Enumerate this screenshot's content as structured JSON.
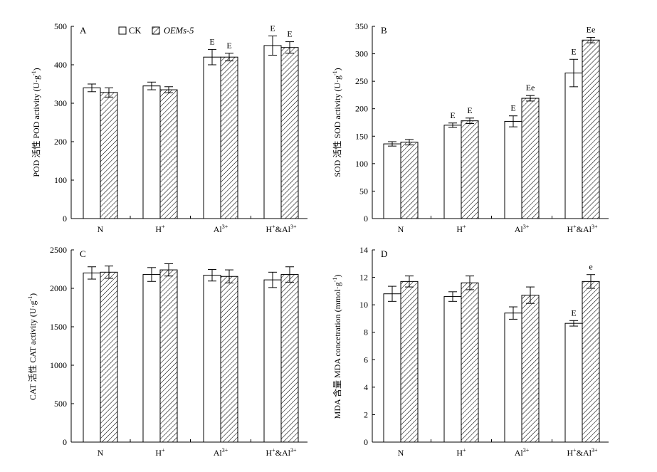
{
  "legend": [
    {
      "label": "CK",
      "italic": false,
      "pattern": "plain"
    },
    {
      "label": "OEMs-5",
      "italic": true,
      "pattern": "hatch"
    }
  ],
  "chart_data": [
    {
      "type": "bar",
      "panel": "A",
      "ylabel": "POD 活性 POD activity (U·g-1)",
      "ylabel_parts": {
        "main": "POD 活性 POD activity (U·g",
        "sup": "-1",
        "tail": ")"
      },
      "ylim": [
        0,
        500
      ],
      "yticks": [
        0,
        100,
        200,
        300,
        400,
        500
      ],
      "categories": [
        {
          "base": "N",
          "sup": "",
          "mid": "",
          "sup2": ""
        },
        {
          "base": "H",
          "sup": "+",
          "mid": "",
          "sup2": ""
        },
        {
          "base": "Al",
          "sup": "3+",
          "mid": "",
          "sup2": ""
        },
        {
          "base": "H",
          "sup": "+",
          "mid": "&Al",
          "sup2": "3+"
        }
      ],
      "show_legend": true,
      "series": [
        {
          "name": "CK",
          "values": [
            340,
            345,
            420,
            450
          ],
          "errors": [
            10,
            10,
            20,
            25
          ],
          "labels": [
            "",
            "",
            "E",
            "E"
          ]
        },
        {
          "name": "OEMs-5",
          "values": [
            328,
            335,
            420,
            445
          ],
          "errors": [
            12,
            8,
            10,
            15
          ],
          "labels": [
            "",
            "",
            "E",
            "E"
          ]
        }
      ]
    },
    {
      "type": "bar",
      "panel": "B",
      "ylabel": "SOD 活性 SOD activity (U·g-1)",
      "ylabel_parts": {
        "main": "SOD 活性 SOD activity (U·g",
        "sup": "-1",
        "tail": ")"
      },
      "ylim": [
        0,
        350
      ],
      "yticks": [
        0,
        50,
        100,
        150,
        200,
        250,
        300,
        350
      ],
      "categories": [
        {
          "base": "N",
          "sup": "",
          "mid": "",
          "sup2": ""
        },
        {
          "base": "H",
          "sup": "+",
          "mid": "",
          "sup2": ""
        },
        {
          "base": "Al",
          "sup": "3+",
          "mid": "",
          "sup2": ""
        },
        {
          "base": "H",
          "sup": "+",
          "mid": "&Al",
          "sup2": "3+"
        }
      ],
      "show_legend": false,
      "series": [
        {
          "name": "CK",
          "values": [
            136,
            170,
            177,
            265
          ],
          "errors": [
            4,
            4,
            10,
            25
          ],
          "labels": [
            "",
            "E",
            "E",
            "E"
          ]
        },
        {
          "name": "OEMs-5",
          "values": [
            139,
            178,
            219,
            325
          ],
          "errors": [
            5,
            5,
            5,
            5
          ],
          "labels": [
            "",
            "E",
            "Ee",
            "Ee"
          ]
        }
      ]
    },
    {
      "type": "bar",
      "panel": "C",
      "ylabel": "CAT 活性 CAT activity (U·g-1)",
      "ylabel_parts": {
        "main": "CAT 活性 CAT activity (U·g",
        "sup": "-1",
        "tail": ")"
      },
      "ylim": [
        0,
        2500
      ],
      "yticks": [
        0,
        500,
        1000,
        1500,
        2000,
        2500
      ],
      "categories": [
        {
          "base": "N",
          "sup": "",
          "mid": "",
          "sup2": ""
        },
        {
          "base": "H",
          "sup": "+",
          "mid": "",
          "sup2": ""
        },
        {
          "base": "Al",
          "sup": "3+",
          "mid": "",
          "sup2": ""
        },
        {
          "base": "H",
          "sup": "+",
          "mid": "&Al",
          "sup2": "3+"
        }
      ],
      "show_legend": false,
      "series": [
        {
          "name": "CK",
          "values": [
            2200,
            2180,
            2170,
            2110
          ],
          "errors": [
            80,
            90,
            75,
            100
          ],
          "labels": [
            "",
            "",
            "",
            ""
          ]
        },
        {
          "name": "OEMs-5",
          "values": [
            2210,
            2240,
            2155,
            2180
          ],
          "errors": [
            80,
            80,
            85,
            100
          ],
          "labels": [
            "",
            "",
            "",
            ""
          ]
        }
      ]
    },
    {
      "type": "bar",
      "panel": "D",
      "ylabel": "MDA 含量 MDA concetration (mmol·g-1)",
      "ylabel_parts": {
        "main": "MDA 含量 MDA concetration (mmol·g",
        "sup": "-1",
        "tail": ")"
      },
      "ylim": [
        0,
        14
      ],
      "yticks": [
        0,
        2,
        4,
        6,
        8,
        10,
        12,
        14
      ],
      "categories": [
        {
          "base": "N",
          "sup": "",
          "mid": "",
          "sup2": ""
        },
        {
          "base": "H",
          "sup": "+",
          "mid": "",
          "sup2": ""
        },
        {
          "base": "Al",
          "sup": "3+",
          "mid": "",
          "sup2": ""
        },
        {
          "base": "H",
          "sup": "+",
          "mid": "&Al",
          "sup2": "3+"
        }
      ],
      "show_legend": false,
      "series": [
        {
          "name": "CK",
          "values": [
            10.8,
            10.6,
            9.4,
            8.65
          ],
          "errors": [
            0.55,
            0.35,
            0.45,
            0.2
          ],
          "labels": [
            "",
            "",
            "",
            "E"
          ]
        },
        {
          "name": "OEMs-5",
          "values": [
            11.7,
            11.6,
            10.7,
            11.7
          ],
          "errors": [
            0.4,
            0.5,
            0.6,
            0.5
          ],
          "labels": [
            "",
            "",
            "",
            "e"
          ]
        }
      ]
    }
  ]
}
